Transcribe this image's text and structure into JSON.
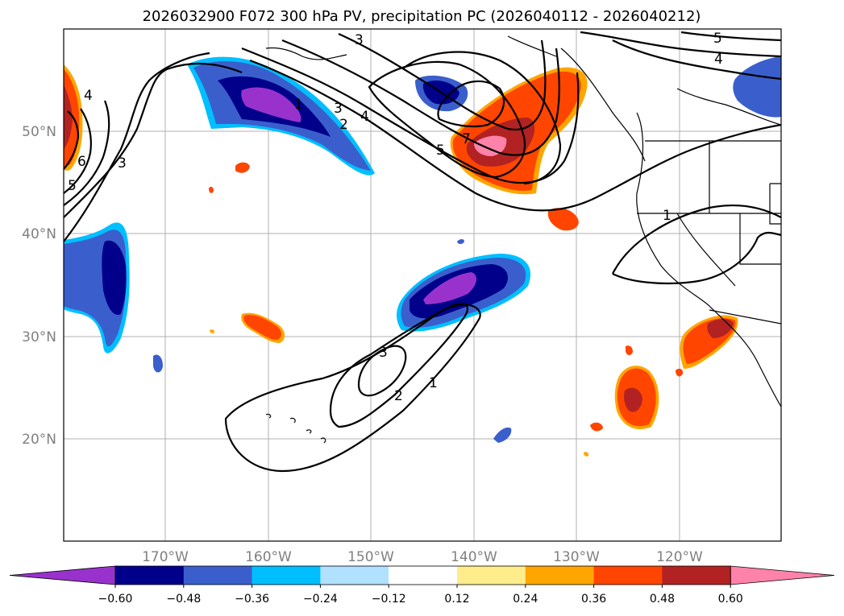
{
  "title": "2026032900 F072 300 hPa PV, precipitation PC (2026040112 - 2026040212)",
  "lat_labels": [
    "50°N",
    "40°N",
    "30°N",
    "20°N"
  ],
  "lon_labels": [
    "170°W",
    "160°W",
    "150°W",
    "140°W",
    "130°W",
    "120°W"
  ],
  "colorbar": {
    "colors": [
      "#9932cc",
      "#00008b",
      "#3a5fcd",
      "#00bfff",
      "#b0e2ff",
      "#ffffff",
      "#ffec8b",
      "#ffa500",
      "#ff4500",
      "#b22222",
      "#ff82ab"
    ],
    "ticks": [
      "−0.60",
      "−0.48",
      "−0.36",
      "−0.24",
      "−0.12",
      "0.12",
      "0.24",
      "0.36",
      "0.48",
      "0.60"
    ]
  },
  "contour_labels": [
    "1",
    "2",
    "3",
    "4",
    "5",
    "6",
    "7"
  ]
}
